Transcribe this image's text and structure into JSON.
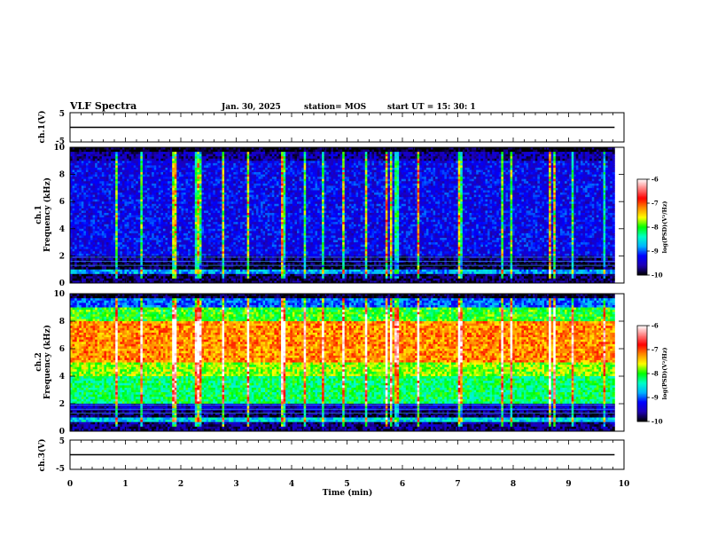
{
  "header": {
    "title": "VLF Spectra",
    "date": "Jan. 30, 2025",
    "station": "station= MOS",
    "start": "start  UT  =   15: 30: 1"
  },
  "chart_data": {
    "type": "heatmap",
    "x_axis": {
      "label": "Time  (min)",
      "range": [
        0,
        10
      ],
      "ticks": [
        "0",
        "1",
        "2",
        "3",
        "4",
        "5",
        "6",
        "7",
        "8",
        "9",
        "10"
      ],
      "data_end": 9.83
    },
    "voltage_panels": [
      {
        "name": "ch.1(V)",
        "range": [
          -5,
          5
        ],
        "ticks": [
          "5",
          "-5"
        ],
        "level": 0
      },
      {
        "name": "ch.3(V)",
        "range": [
          -5,
          5
        ],
        "ticks": [
          "5",
          "-5"
        ],
        "level": 0
      }
    ],
    "spectrogram_panels": [
      {
        "name": "ch.1",
        "ylabel": "Frequency (kHz)",
        "yrange": [
          0,
          10
        ],
        "yticks": [
          "0",
          "2",
          "4",
          "6",
          "8",
          "10"
        ],
        "typical_log_psd_by_band": [
          {
            "f": [
              0.0,
              0.6
            ],
            "v": -9.8
          },
          {
            "f": [
              0.6,
              1.0
            ],
            "v": -8.8
          },
          {
            "f": [
              1.0,
              1.5
            ],
            "v": -9.9
          },
          {
            "f": [
              1.5,
              2.0
            ],
            "v": -9.7
          },
          {
            "f": [
              2.0,
              9.0
            ],
            "v": -9.3
          },
          {
            "f": [
              9.0,
              9.6
            ],
            "v": -9.6
          },
          {
            "f": [
              9.6,
              10.0
            ],
            "v": -10.0
          }
        ]
      },
      {
        "name": "ch.2",
        "ylabel": "Frequency (kHz)",
        "yrange": [
          0,
          10
        ],
        "yticks": [
          "0",
          "2",
          "4",
          "6",
          "8",
          "10"
        ],
        "typical_log_psd_by_band": [
          {
            "f": [
              0.0,
              0.6
            ],
            "v": -9.7
          },
          {
            "f": [
              0.6,
              1.0
            ],
            "v": -8.6
          },
          {
            "f": [
              1.0,
              1.5
            ],
            "v": -9.8
          },
          {
            "f": [
              1.5,
              2.0
            ],
            "v": -9.5
          },
          {
            "f": [
              2.0,
              4.0
            ],
            "v": -8.2
          },
          {
            "f": [
              4.0,
              5.0
            ],
            "v": -7.8
          },
          {
            "f": [
              5.0,
              8.0
            ],
            "v": -7.2
          },
          {
            "f": [
              8.0,
              9.0
            ],
            "v": -8.0
          },
          {
            "f": [
              9.0,
              9.6
            ],
            "v": -9.0
          },
          {
            "f": [
              9.6,
              10.0
            ],
            "v": -9.9
          }
        ]
      }
    ],
    "colorbar": {
      "label": "log(PSD)(V²/Hz)",
      "range": [
        -10,
        -6
      ],
      "ticks": [
        "-6",
        "-7",
        "-8",
        "-9",
        "-10"
      ],
      "colors": [
        "#000000",
        "#1e00b4",
        "#0000ff",
        "#00b4ff",
        "#00ffc8",
        "#00ff00",
        "#ffff00",
        "#ff8c00",
        "#ff0000",
        "#ff8080",
        "#ffffff"
      ]
    }
  }
}
